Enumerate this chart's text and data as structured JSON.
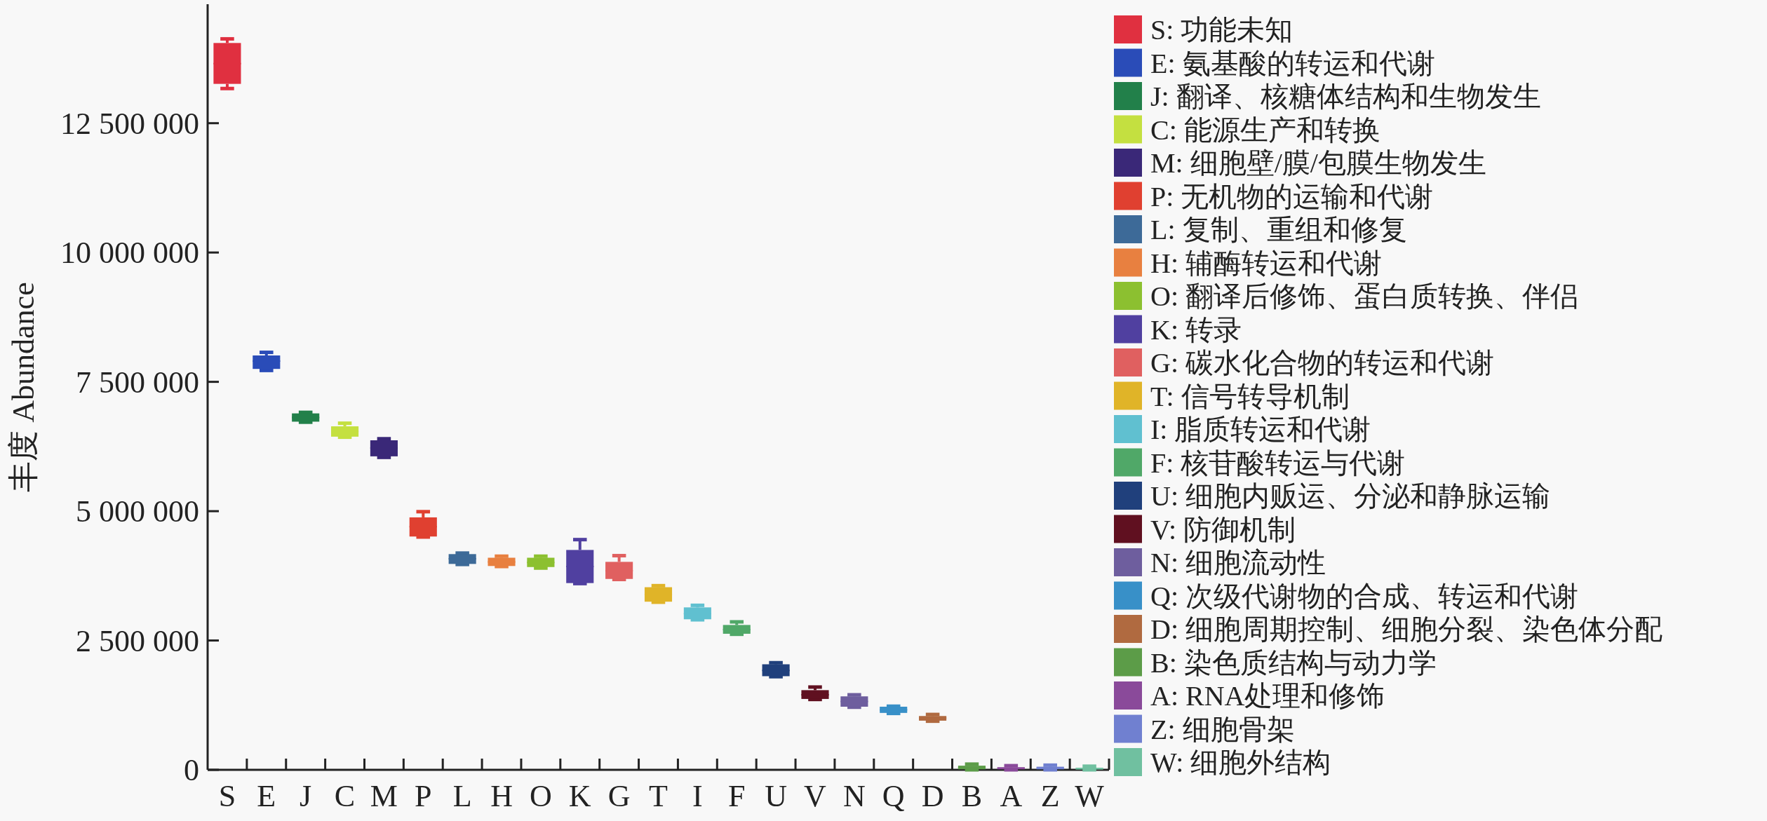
{
  "chart_data": {
    "type": "box",
    "ylabel": "丰度 Abundance",
    "categories": [
      "S",
      "E",
      "J",
      "C",
      "M",
      "P",
      "L",
      "H",
      "O",
      "K",
      "G",
      "T",
      "I",
      "F",
      "U",
      "V",
      "N",
      "Q",
      "D",
      "B",
      "A",
      "Z",
      "W"
    ],
    "ylim": [
      0,
      14800000
    ],
    "yticks": [
      0,
      {
        "value": 2500000,
        "label": "2 500 000"
      },
      {
        "value": 5000000,
        "label": "5 000 000"
      },
      {
        "value": 7500000,
        "label": "7 500 000"
      },
      {
        "value": 10000000,
        "label": "10 000 000"
      },
      {
        "value": 12500000,
        "label": "12 500 000"
      }
    ],
    "legend": "right",
    "grid": false,
    "series": [
      {
        "name": "S: 功能未知",
        "color": "#e03040",
        "x": [
          "S"
        ],
        "boxes": [
          {
            "low": 13170000,
            "q1": 13260000,
            "median": 13650000,
            "q3": 14050000,
            "high": 14130000
          }
        ]
      },
      {
        "name": "E: 氨基酸的转运和代谢",
        "color": "#2a4cb8",
        "x": [
          "E"
        ],
        "boxes": [
          {
            "low": 7720000,
            "q1": 7750000,
            "median": 7900000,
            "q3": 8010000,
            "high": 8070000
          }
        ]
      },
      {
        "name": "J: 翻译、核糖体结构和生物发生",
        "color": "#22804a",
        "x": [
          "J"
        ],
        "boxes": [
          {
            "low": 6720000,
            "q1": 6730000,
            "median": 6810000,
            "q3": 6890000,
            "high": 6910000
          }
        ]
      },
      {
        "name": "C: 能源生产和转换",
        "color": "#c4e040",
        "x": [
          "C"
        ],
        "boxes": [
          {
            "low": 6430000,
            "q1": 6440000,
            "median": 6540000,
            "q3": 6640000,
            "high": 6700000
          }
        ]
      },
      {
        "name": "M: 细胞壁/膜/包膜生物发生",
        "color": "#3a2878",
        "x": [
          "M"
        ],
        "boxes": [
          {
            "low": 6040000,
            "q1": 6060000,
            "median": 6220000,
            "q3": 6370000,
            "high": 6400000
          }
        ]
      },
      {
        "name": "P: 无机物的运输和代谢",
        "color": "#e04030",
        "x": [
          "P"
        ],
        "boxes": [
          {
            "low": 4500000,
            "q1": 4510000,
            "median": 4700000,
            "q3": 4880000,
            "high": 4990000
          }
        ]
      },
      {
        "name": "L: 复制、重组和修复",
        "color": "#3d6a98",
        "x": [
          "L"
        ],
        "boxes": [
          {
            "low": 3970000,
            "q1": 3980000,
            "median": 4080000,
            "q3": 4170000,
            "high": 4190000
          }
        ]
      },
      {
        "name": "H: 辅酶转运和代谢",
        "color": "#e88040",
        "x": [
          "H"
        ],
        "boxes": [
          {
            "low": 3930000,
            "q1": 3940000,
            "median": 4020000,
            "q3": 4100000,
            "high": 4130000
          }
        ]
      },
      {
        "name": "O: 翻译后修饰、蛋白质转换、伴侣",
        "color": "#8cc030",
        "x": [
          "O"
        ],
        "boxes": [
          {
            "low": 3900000,
            "q1": 3920000,
            "median": 4010000,
            "q3": 4100000,
            "high": 4130000
          }
        ]
      },
      {
        "name": "K: 转录",
        "color": "#5040a0",
        "x": [
          "K"
        ],
        "boxes": [
          {
            "low": 3600000,
            "q1": 3610000,
            "median": 3930000,
            "q3": 4250000,
            "high": 4450000
          }
        ]
      },
      {
        "name": "G: 碳水化合物的转运和代谢",
        "color": "#e06060",
        "x": [
          "G"
        ],
        "boxes": [
          {
            "low": 3680000,
            "q1": 3690000,
            "median": 3850000,
            "q3": 4020000,
            "high": 4140000
          }
        ]
      },
      {
        "name": "T: 信号转导机制",
        "color": "#e0b428",
        "x": [
          "T"
        ],
        "boxes": [
          {
            "low": 3240000,
            "q1": 3250000,
            "median": 3390000,
            "q3": 3530000,
            "high": 3560000
          }
        ]
      },
      {
        "name": "I: 脂质转运和代谢",
        "color": "#60c0d0",
        "x": [
          "I"
        ],
        "boxes": [
          {
            "low": 2900000,
            "q1": 2910000,
            "median": 3020000,
            "q3": 3140000,
            "high": 3180000
          }
        ]
      },
      {
        "name": "F: 核苷酸转运与代谢",
        "color": "#50a868",
        "x": [
          "F"
        ],
        "boxes": [
          {
            "low": 2620000,
            "q1": 2630000,
            "median": 2710000,
            "q3": 2800000,
            "high": 2860000
          }
        ]
      },
      {
        "name": "U: 细胞内贩运、分泌和静脉运输",
        "color": "#20407c",
        "x": [
          "U"
        ],
        "boxes": [
          {
            "low": 1800000,
            "q1": 1810000,
            "median": 1920000,
            "q3": 2040000,
            "high": 2070000
          }
        ]
      },
      {
        "name": "V: 防御机制",
        "color": "#601020",
        "x": [
          "V"
        ],
        "boxes": [
          {
            "low": 1360000,
            "q1": 1370000,
            "median": 1450000,
            "q3": 1540000,
            "high": 1600000
          }
        ]
      },
      {
        "name": "N: 细胞流动性",
        "color": "#6e5e9e",
        "x": [
          "N"
        ],
        "boxes": [
          {
            "low": 1210000,
            "q1": 1220000,
            "median": 1320000,
            "q3": 1420000,
            "high": 1450000
          }
        ]
      },
      {
        "name": "Q: 次级代谢物的合成、转运和代谢",
        "color": "#3890c8",
        "x": [
          "Q"
        ],
        "boxes": [
          {
            "low": 1090000,
            "q1": 1100000,
            "median": 1160000,
            "q3": 1220000,
            "high": 1230000
          }
        ]
      },
      {
        "name": "D: 细胞周期控制、细胞分裂、染色体分配",
        "color": "#b06a40",
        "x": [
          "D"
        ],
        "boxes": [
          {
            "low": 940000,
            "q1": 950000,
            "median": 1000000,
            "q3": 1040000,
            "high": 1070000
          }
        ]
      },
      {
        "name": "B: 染色质结构与动力学",
        "color": "#5c9c48",
        "x": [
          "B"
        ],
        "boxes": [
          {
            "low": 0,
            "q1": 10000,
            "median": 40000,
            "q3": 80000,
            "high": 110000
          }
        ]
      },
      {
        "name": "A: RNA处理和修饰",
        "color": "#8a4a9a",
        "x": [
          "A"
        ],
        "boxes": [
          {
            "low": 0,
            "q1": 10000,
            "median": 30000,
            "q3": 50000,
            "high": 80000
          }
        ]
      },
      {
        "name": "Z: 细胞骨架",
        "color": "#7080d0",
        "x": [
          "Z"
        ],
        "boxes": [
          {
            "low": 0,
            "q1": 10000,
            "median": 30000,
            "q3": 60000,
            "high": 90000
          }
        ]
      },
      {
        "name": "W: 细胞外结构",
        "color": "#70c0a0",
        "x": [
          "W"
        ],
        "boxes": [
          {
            "low": 0,
            "q1": 10000,
            "median": 20000,
            "q3": 40000,
            "high": 70000
          }
        ]
      }
    ]
  }
}
